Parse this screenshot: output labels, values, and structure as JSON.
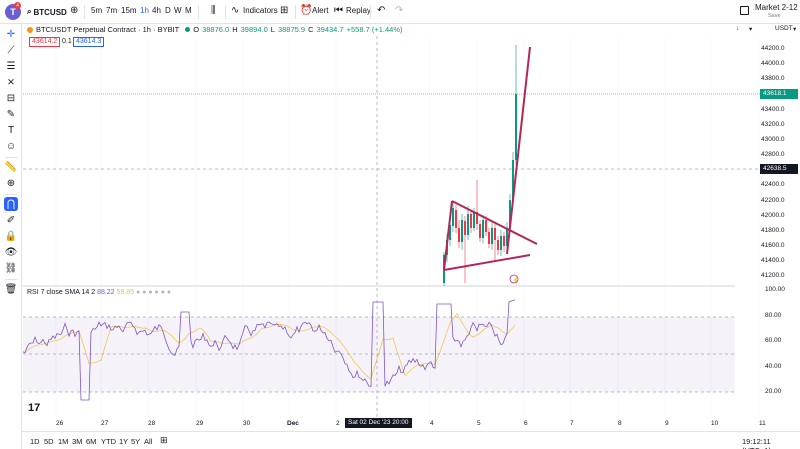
{
  "toolbar": {
    "logo_letter": "T",
    "notification_count": "4",
    "symbol": "BTCUSD",
    "intervals": [
      "5m",
      "7m",
      "15m",
      "1h",
      "4h",
      "D",
      "W",
      "M"
    ],
    "active_interval": "1h",
    "indicators_label": "Indicators",
    "alert_label": "Alert",
    "replay_label": "Replay",
    "layout_name": "Market 2-12",
    "layout_status": "Save"
  },
  "legend": {
    "title": "BTCUSDT Perpetual Contract · 1h · BYBIT",
    "open_label": "O",
    "open": "38876.0",
    "high_label": "H",
    "high": "39894.0",
    "low_label": "L",
    "low": "38875.9",
    "close_label": "C",
    "close": "39434.7",
    "change": "+558.7 (+1.44%)",
    "sell_price": "43614.2",
    "spread": "0.1",
    "buy_price": "43614.3"
  },
  "rsi_legend": {
    "name": "RSI",
    "params": "7 close SMA 14 2",
    "value1": "88.22",
    "value2": "59.85"
  },
  "price_scale": {
    "currency": "USDT",
    "labels": [
      "44200.0",
      "44000.0",
      "43800.0",
      "43600.0",
      "43400.0",
      "43200.0",
      "43000.0",
      "42800.0",
      "42600.0",
      "42400.0",
      "42200.0",
      "42000.0",
      "41800.0",
      "41600.0",
      "41400.0",
      "41200.0"
    ],
    "current_price": "43618.1",
    "crosshair_price": "42638.5"
  },
  "rsi_scale": {
    "labels": [
      "100.00",
      "80.00",
      "60.00",
      "40.00",
      "20.00"
    ]
  },
  "time_scale": {
    "labels": [
      "26",
      "27",
      "28",
      "29",
      "30",
      "Dec",
      "2",
      "4",
      "5",
      "6",
      "7",
      "8",
      "9",
      "10",
      "11"
    ],
    "cursor_label": "Sat 02 Dec '23   20:00",
    "clock": "19:12:11 (UTC+1)"
  },
  "ranges": [
    "1D",
    "5D",
    "1M",
    "3M",
    "6M",
    "YTD",
    "1Y",
    "5Y",
    "All"
  ],
  "colors": {
    "up": "#089981",
    "down": "#f23645",
    "pattern_line": "#b2265a",
    "rsi_line": "#7e57c2",
    "rsi_sma": "#f0c040",
    "accent": "#2962ff"
  }
}
